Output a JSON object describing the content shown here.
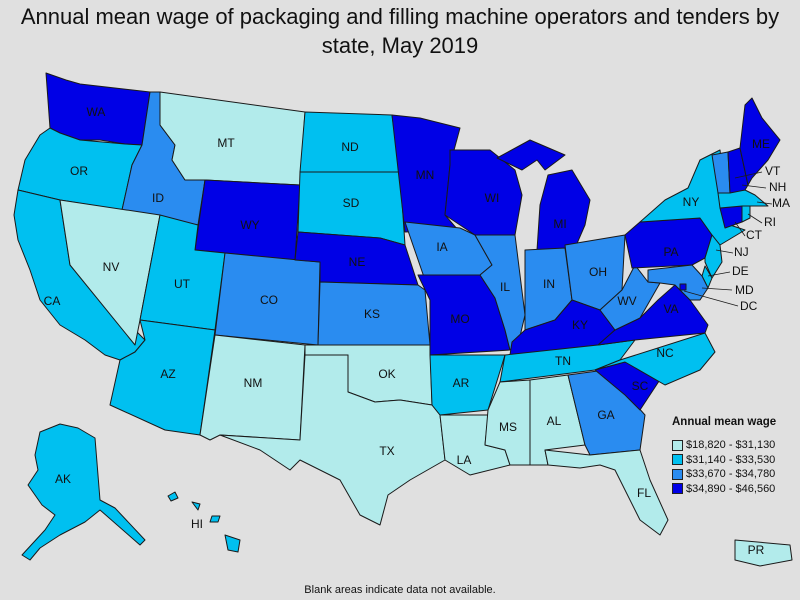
{
  "title": "Annual mean wage of packaging and filling machine operators and tenders by state, May 2019",
  "legend": {
    "title": "Annual mean wage",
    "items": [
      {
        "label": "$18,820 - $31,130",
        "color": "#b2ebeb"
      },
      {
        "label": "$31,140 - $33,530",
        "color": "#00c0f0"
      },
      {
        "label": "$33,670 - $34,780",
        "color": "#2a8cf0"
      },
      {
        "label": "$34,890 - $46,560",
        "color": "#0000e6"
      }
    ]
  },
  "footnote": "Blank areas indicate data not available.",
  "states": [
    {
      "abbr": "WA",
      "level": 3
    },
    {
      "abbr": "OR",
      "level": 1
    },
    {
      "abbr": "CA",
      "level": 1
    },
    {
      "abbr": "ID",
      "level": 2
    },
    {
      "abbr": "NV",
      "level": 0
    },
    {
      "abbr": "MT",
      "level": 0
    },
    {
      "abbr": "WY",
      "level": 3
    },
    {
      "abbr": "UT",
      "level": 1
    },
    {
      "abbr": "AZ",
      "level": 1
    },
    {
      "abbr": "CO",
      "level": 2
    },
    {
      "abbr": "NM",
      "level": 0
    },
    {
      "abbr": "ND",
      "level": 1
    },
    {
      "abbr": "SD",
      "level": 1
    },
    {
      "abbr": "NE",
      "level": 3
    },
    {
      "abbr": "KS",
      "level": 2
    },
    {
      "abbr": "OK",
      "level": 0
    },
    {
      "abbr": "TX",
      "level": 0
    },
    {
      "abbr": "MN",
      "level": 3
    },
    {
      "abbr": "IA",
      "level": 2
    },
    {
      "abbr": "MO",
      "level": 3
    },
    {
      "abbr": "AR",
      "level": 1
    },
    {
      "abbr": "LA",
      "level": 0
    },
    {
      "abbr": "WI",
      "level": 3
    },
    {
      "abbr": "IL",
      "level": 2
    },
    {
      "abbr": "MI",
      "level": 3
    },
    {
      "abbr": "IN",
      "level": 2
    },
    {
      "abbr": "OH",
      "level": 2
    },
    {
      "abbr": "KY",
      "level": 3
    },
    {
      "abbr": "TN",
      "level": 1
    },
    {
      "abbr": "MS",
      "level": 0
    },
    {
      "abbr": "AL",
      "level": 0
    },
    {
      "abbr": "GA",
      "level": 2
    },
    {
      "abbr": "FL",
      "level": 0
    },
    {
      "abbr": "SC",
      "level": 3
    },
    {
      "abbr": "NC",
      "level": 1
    },
    {
      "abbr": "VA",
      "level": 3
    },
    {
      "abbr": "WV",
      "level": 2
    },
    {
      "abbr": "PA",
      "level": 3
    },
    {
      "abbr": "NY",
      "level": 1
    },
    {
      "abbr": "ME",
      "level": 3
    },
    {
      "abbr": "VT",
      "level": 2
    },
    {
      "abbr": "NH",
      "level": 3
    },
    {
      "abbr": "MA",
      "level": 1
    },
    {
      "abbr": "RI",
      "level": 1
    },
    {
      "abbr": "CT",
      "level": 3
    },
    {
      "abbr": "NJ",
      "level": 1
    },
    {
      "abbr": "DE",
      "level": 1
    },
    {
      "abbr": "MD",
      "level": 2
    },
    {
      "abbr": "DC",
      "level": 3
    },
    {
      "abbr": "AK",
      "level": 1
    },
    {
      "abbr": "HI",
      "level": 1
    },
    {
      "abbr": "PR",
      "level": 0
    }
  ]
}
